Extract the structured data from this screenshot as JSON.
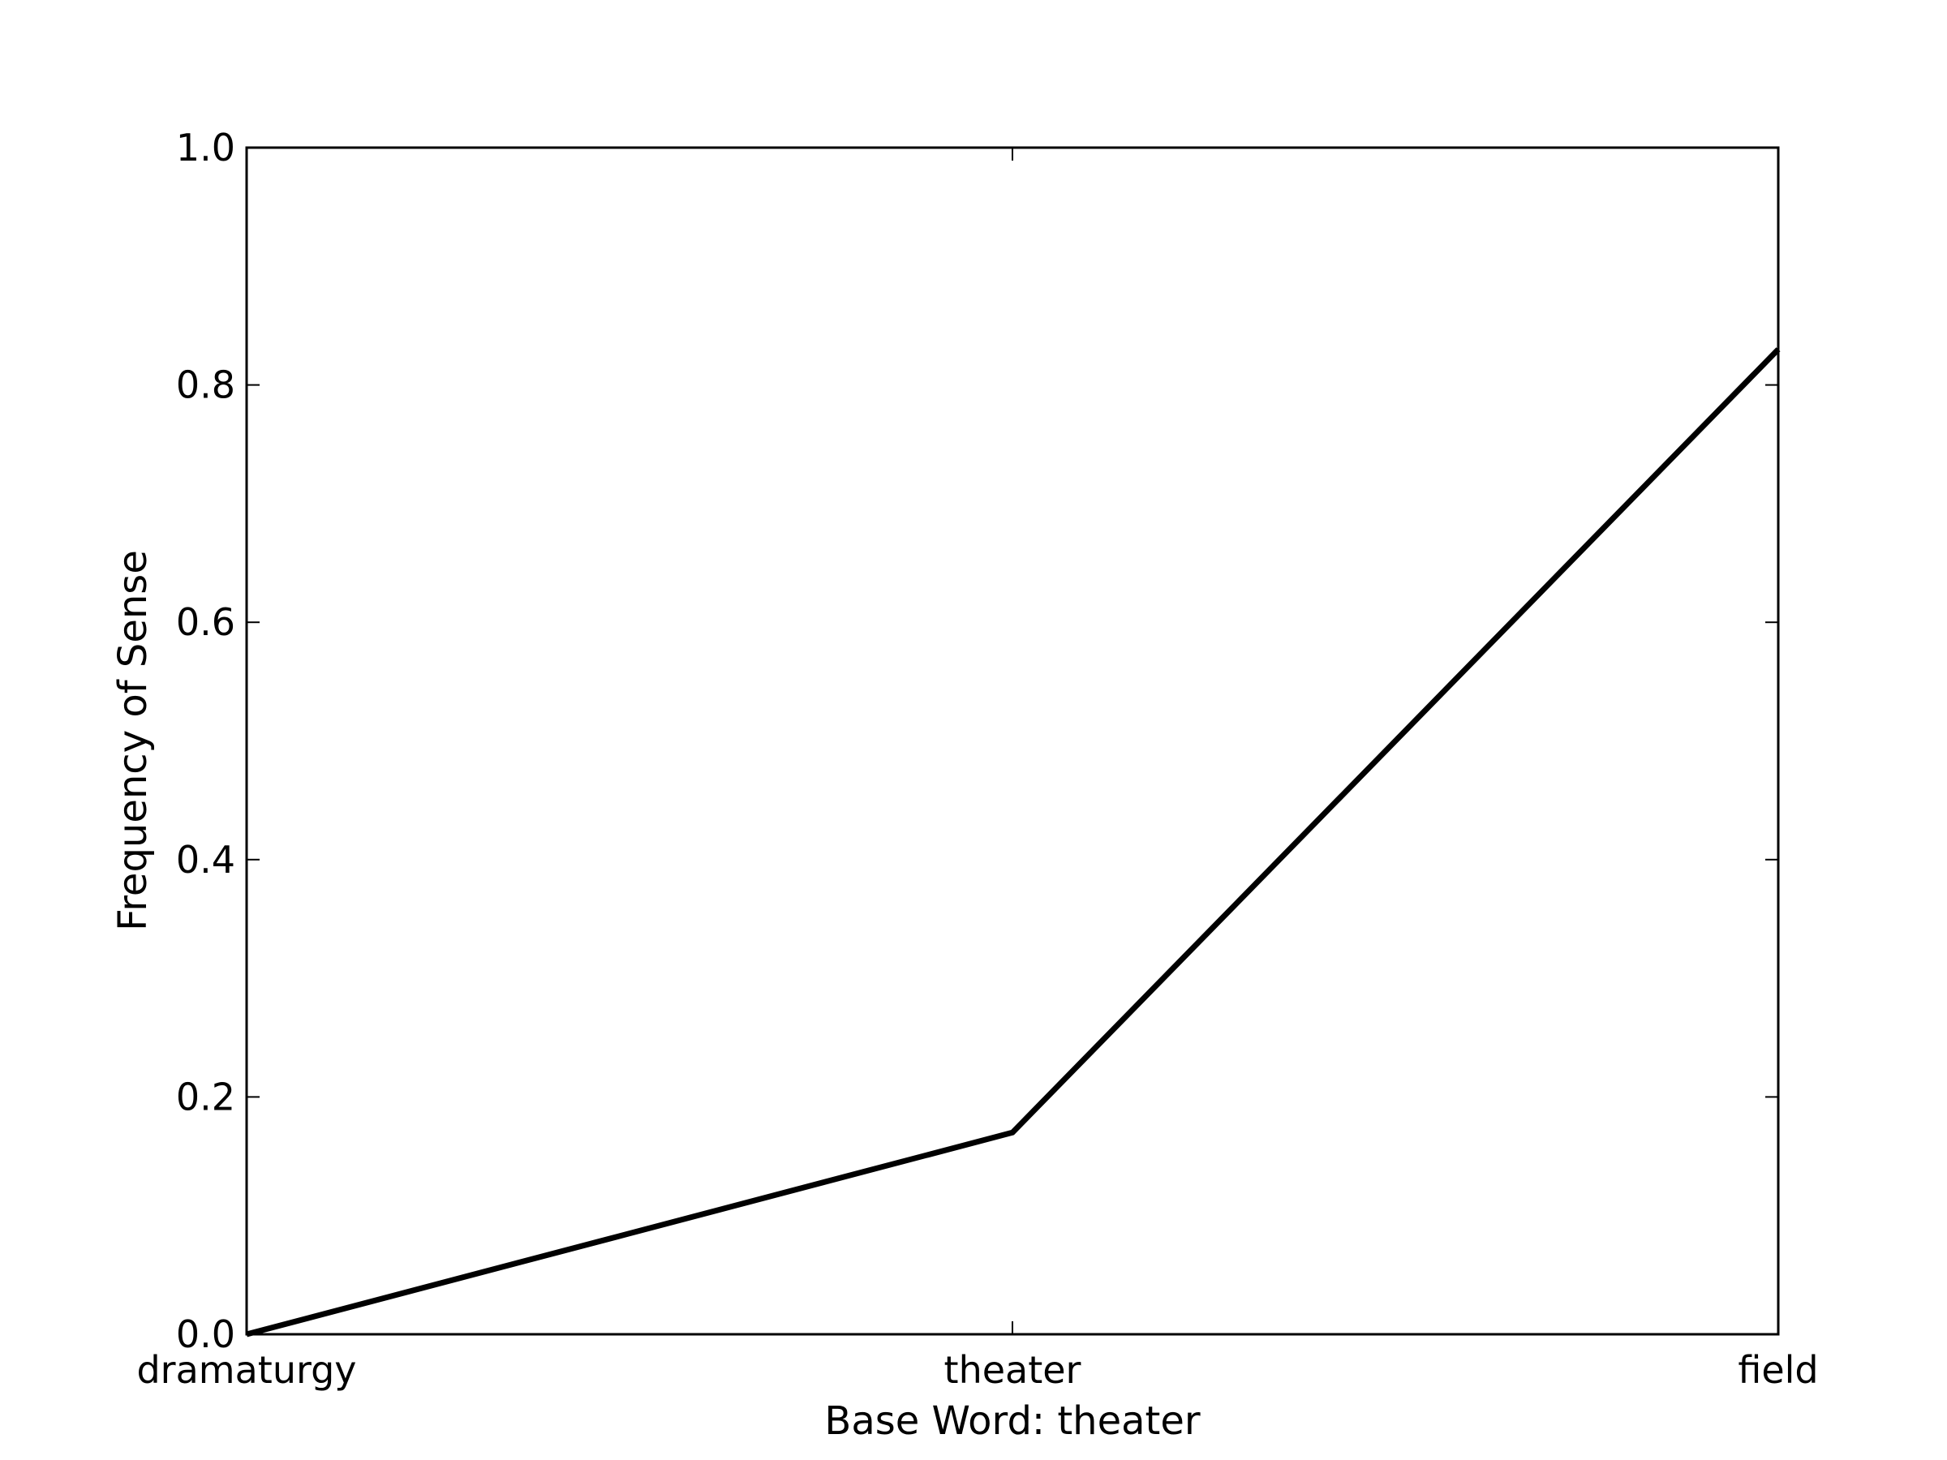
{
  "chart_data": {
    "type": "line",
    "categories": [
      "dramaturgy",
      "theater",
      "field"
    ],
    "series": [
      {
        "values": [
          0.0,
          0.17,
          0.83
        ]
      }
    ],
    "title": "",
    "xlabel": "Base Word: theater",
    "ylabel": "Frequency of Sense",
    "ylim": [
      0.0,
      1.0
    ],
    "yticks": [
      "0.0",
      "0.2",
      "0.4",
      "0.6",
      "0.8",
      "1.0"
    ],
    "grid": false,
    "legend": "none",
    "line_color": "#000000"
  }
}
